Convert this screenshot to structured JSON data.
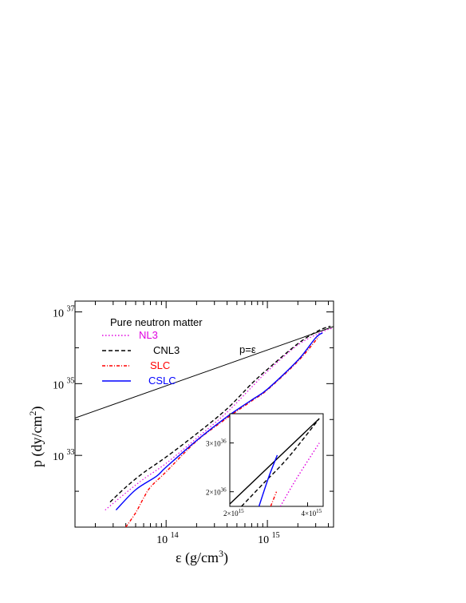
{
  "chart_data": {
    "type": "line",
    "title": "",
    "annotation": "Pure neutron matter",
    "line_label": "p=ε",
    "xlabel": "ε (g/cm³)",
    "ylabel": "p (dy/cm²)",
    "xscale": "log",
    "yscale": "log",
    "xlim": [
      12600000000000.0,
      4500000000000000.0
    ],
    "ylim": [
      1e+31,
      2e+37
    ],
    "x_tick_labels": [
      {
        "value": 100000000000000.0,
        "base": "10",
        "exp": "14"
      },
      {
        "value": 1000000000000000.0,
        "base": "10",
        "exp": "15"
      }
    ],
    "y_tick_labels": [
      {
        "value": 1e+33,
        "base": "10",
        "exp": "33"
      },
      {
        "value": 1e+35,
        "base": "10",
        "exp": "35"
      },
      {
        "value": 1e+37,
        "base": "10",
        "exp": "37"
      }
    ],
    "grid": false,
    "legend_position": "top-left",
    "series": [
      {
        "name": "NL3",
        "color": "#e000e0",
        "style": "dotted",
        "x": [
          25000000000000.0,
          40000000000000.0,
          60000000000000.0,
          100000000000000.0,
          200000000000000.0,
          400000000000000.0,
          700000000000000.0,
          1000000000000000.0,
          2000000000000000.0,
          3500000000000000.0,
          4400000000000000.0
        ],
        "y": [
          3e+31,
          9e+31,
          2.2e+32,
          6e+32,
          3e+33,
          1.6e+34,
          8e+34,
          2.2e+35,
          1.2e+36,
          2.8e+36,
          3.5e+36
        ]
      },
      {
        "name": "CNL3",
        "color": "#000000",
        "style": "dashed",
        "x": [
          28000000000000.0,
          40000000000000.0,
          60000000000000.0,
          100000000000000.0,
          200000000000000.0,
          400000000000000.0,
          700000000000000.0,
          1000000000000000.0,
          2000000000000000.0,
          3200000000000000.0,
          4200000000000000.0
        ],
        "y": [
          5e+31,
          1.3e+32,
          3.3e+32,
          9e+32,
          4e+33,
          2e+34,
          1e+35,
          2.5e+35,
          1.3e+36,
          3e+36,
          4e+36
        ]
      },
      {
        "name": "SLC",
        "color": "#ff0000",
        "style": "dash-dot-marker",
        "x": [
          40000000000000.0,
          50000000000000.0,
          60000000000000.0,
          70000000000000.0,
          100000000000000.0,
          200000000000000.0,
          400000000000000.0,
          700000000000000.0,
          1000000000000000.0,
          2000000000000000.0,
          3200000000000000.0
        ],
        "y": [
          1e+31,
          2.5e+31,
          6.5e+31,
          1.3e+32,
          3.5e+32,
          2.5e+33,
          1.1e+34,
          3.3e+34,
          6.7e+34,
          4.2e+35,
          2e+36
        ]
      },
      {
        "name": "CSLC",
        "color": "#0000ff",
        "style": "solid",
        "x": [
          32000000000000.0,
          50000000000000.0,
          80000000000000.0,
          100000000000000.0,
          200000000000000.0,
          400000000000000.0,
          700000000000000.0,
          1000000000000000.0,
          2000000000000000.0,
          3000000000000000.0,
          3500000000000000.0
        ],
        "y": [
          3e+31,
          1.1e+32,
          2.6e+32,
          4.7e+32,
          2.6e+33,
          1.2e+34,
          3.5e+34,
          7e+34,
          4.5e+35,
          1.9e+36,
          2.6e+36
        ]
      }
    ],
    "reference_line": {
      "name": "p=ε",
      "color": "#000000",
      "x": [
        12600000000000.0,
        4500000000000000.0
      ],
      "y": [
        1.1e+34,
        3.9e+36
      ]
    },
    "inset": {
      "xscale": "linear",
      "yscale": "linear",
      "xlim": [
        2000000000000000.0,
        4400000000000000.0
      ],
      "ylim": [
        1.7e+36,
        3.6e+36
      ],
      "x_tick_labels": [
        {
          "value": 2000000000000000.0,
          "mant": "2",
          "exp": "15"
        },
        {
          "value": 4000000000000000.0,
          "mant": "4",
          "exp": "15"
        }
      ],
      "y_tick_labels": [
        {
          "value": 2e+36,
          "mant": "2",
          "exp": "36"
        },
        {
          "value": 3e+36,
          "mant": "3",
          "exp": "36"
        }
      ],
      "series": [
        {
          "ref": "p=ε",
          "x": [
            2000000000000000.0,
            4300000000000000.0
          ],
          "y": [
            1.75e+36,
            3.5e+36
          ]
        },
        {
          "ref": "CNL3",
          "x": [
            2300000000000000.0,
            2900000000000000.0,
            3500000000000000.0,
            4300000000000000.0
          ],
          "y": [
            1.7e+36,
            2.2e+36,
            2.7e+36,
            3.5e+36
          ]
        },
        {
          "ref": "CSLC",
          "x": [
            2750000000000000.0,
            3000000000000000.0,
            3220000000000000.0
          ],
          "y": [
            1.7e+36,
            2.3e+36,
            2.75e+36
          ]
        },
        {
          "ref": "SLC",
          "x": [
            3050000000000000.0,
            3200000000000000.0
          ],
          "y": [
            1.7e+36,
            2e+36
          ]
        },
        {
          "ref": "NL3",
          "x": [
            3300000000000000.0,
            3700000000000000.0,
            4300000000000000.0
          ],
          "y": [
            1.7e+36,
            2.25e+36,
            3e+36
          ]
        }
      ]
    }
  }
}
